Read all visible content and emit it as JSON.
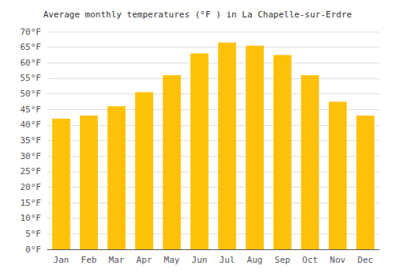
{
  "chart_data": {
    "type": "bar",
    "title": "Average monthly temperatures (°F ) in La Chapelle-sur-Erdre",
    "categories": [
      "Jan",
      "Feb",
      "Mar",
      "Apr",
      "May",
      "Jun",
      "Jul",
      "Aug",
      "Sep",
      "Oct",
      "Nov",
      "Dec"
    ],
    "values": [
      42,
      43,
      46,
      50.5,
      56,
      63,
      66.5,
      65.5,
      62.5,
      56,
      47.5,
      43
    ],
    "color": "#FFC107",
    "ylim": [
      0,
      70
    ],
    "yticks": [
      {
        "value": 0,
        "label": "0°F"
      },
      {
        "value": 5,
        "label": "5°F"
      },
      {
        "value": 10,
        "label": "10°F"
      },
      {
        "value": 15,
        "label": "15°F"
      },
      {
        "value": 20,
        "label": "20°F"
      },
      {
        "value": 25,
        "label": "25°F"
      },
      {
        "value": 30,
        "label": "30°F"
      },
      {
        "value": 35,
        "label": "35°F"
      },
      {
        "value": 40,
        "label": "40°F"
      },
      {
        "value": 45,
        "label": "45°F"
      },
      {
        "value": 50,
        "label": "50°F"
      },
      {
        "value": 55,
        "label": "55°F"
      },
      {
        "value": 60,
        "label": "60°F"
      },
      {
        "value": 65,
        "label": "65°F"
      },
      {
        "value": 70,
        "label": "70°F"
      }
    ],
    "grid": true
  }
}
